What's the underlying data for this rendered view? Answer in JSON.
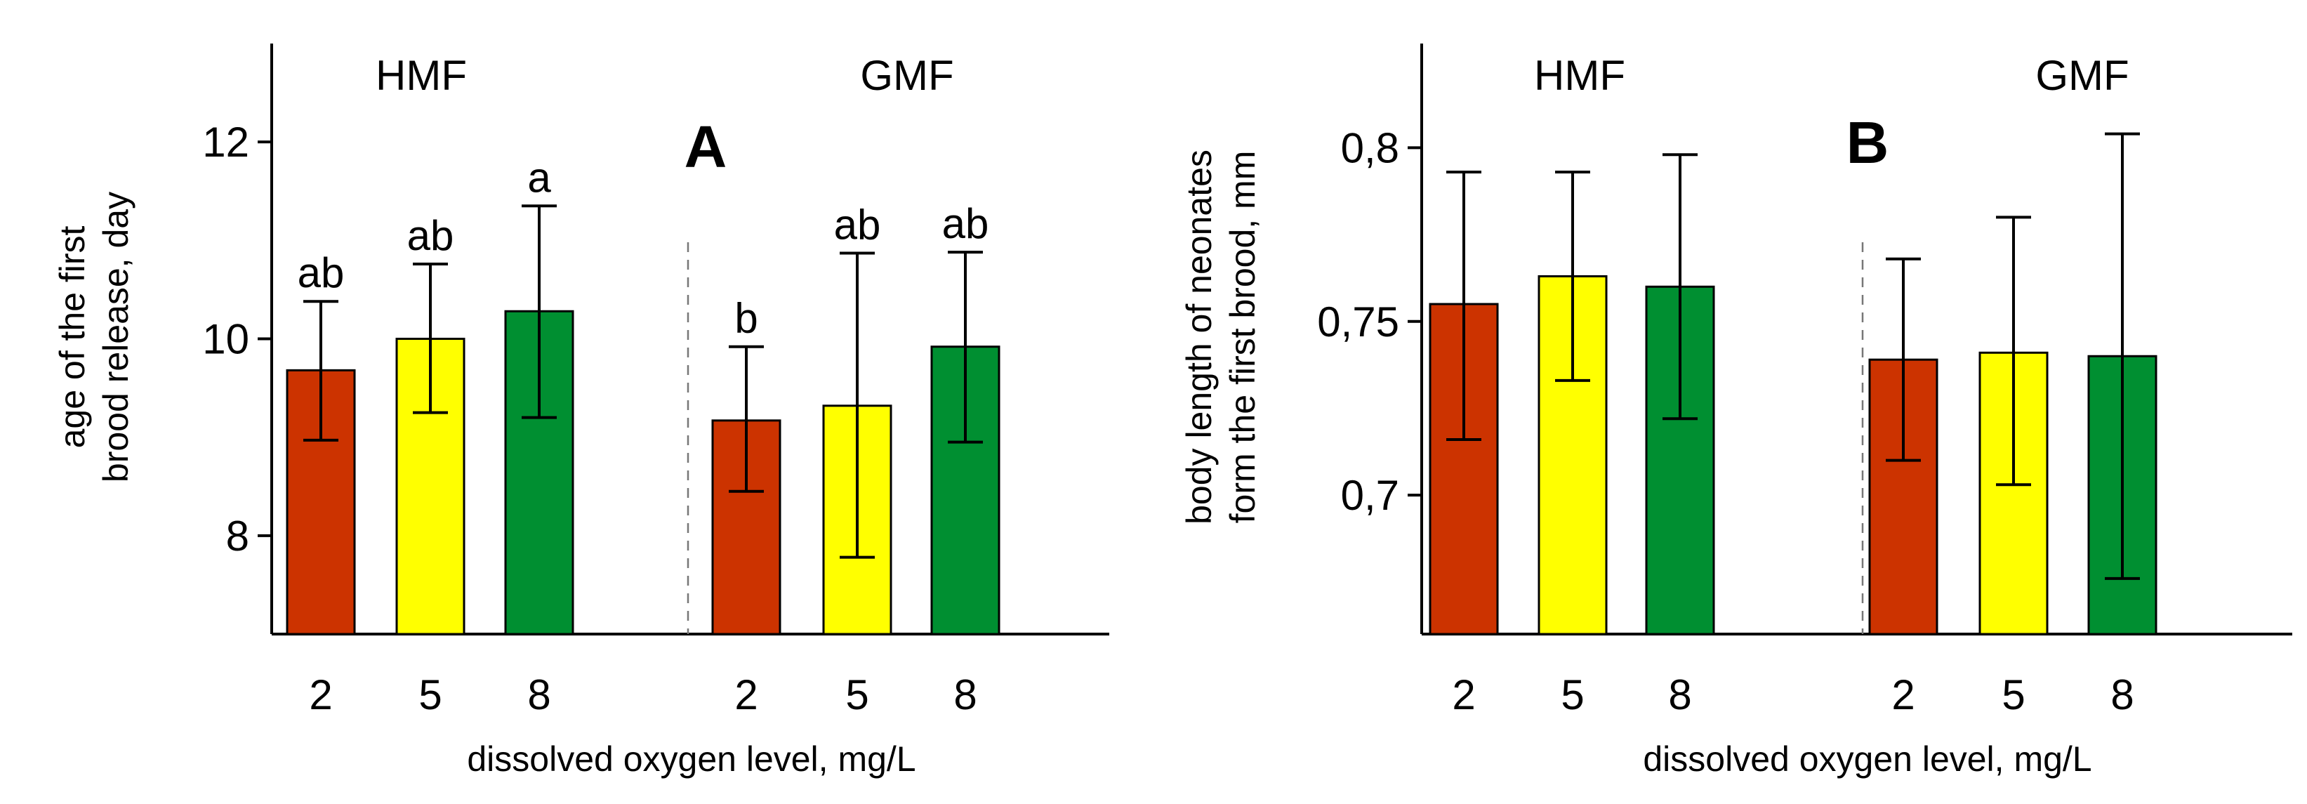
{
  "chart_data": [
    {
      "type": "bar",
      "panel": "A",
      "title": "A",
      "xlabel": "dissolved oxygen level, mg/L",
      "ylabel_lines": [
        "age of the first",
        "brood release, day"
      ],
      "ylim": [
        7,
        13
      ],
      "yticks": [
        8,
        10,
        12
      ],
      "ytick_labels": [
        "8",
        "10",
        "12"
      ],
      "groups": [
        {
          "name": "HMF",
          "bars": [
            {
              "x_label": "2",
              "value": 9.68,
              "err_low": 8.97,
              "err_high": 10.38,
              "sig": "ab",
              "color": "#cc3300"
            },
            {
              "x_label": "5",
              "value": 10.0,
              "err_low": 9.25,
              "err_high": 10.76,
              "sig": "ab",
              "color": "#ffff00"
            },
            {
              "x_label": "8",
              "value": 10.28,
              "err_low": 9.2,
              "err_high": 11.35,
              "sig": "a",
              "color": "#008f31"
            }
          ]
        },
        {
          "name": "GMF",
          "bars": [
            {
              "x_label": "2",
              "value": 9.17,
              "err_low": 8.45,
              "err_high": 9.92,
              "sig": "b",
              "color": "#cc3300"
            },
            {
              "x_label": "5",
              "value": 9.32,
              "err_low": 7.78,
              "err_high": 10.87,
              "sig": "ab",
              "color": "#ffff00"
            },
            {
              "x_label": "8",
              "value": 9.92,
              "err_low": 8.95,
              "err_high": 10.88,
              "sig": "ab",
              "color": "#008f31"
            }
          ]
        }
      ]
    },
    {
      "type": "bar",
      "panel": "B",
      "title": "B",
      "xlabel": "dissolved oxygen level, mg/L",
      "ylabel_lines": [
        "body length of neonates",
        "form the first brood, mm"
      ],
      "ylim": [
        0.66,
        0.83
      ],
      "yticks": [
        0.7,
        0.75,
        0.8
      ],
      "ytick_labels": [
        "0,7",
        "0,75",
        "0,8"
      ],
      "groups": [
        {
          "name": "HMF",
          "bars": [
            {
              "x_label": "2",
              "value": 0.755,
              "err_low": 0.716,
              "err_high": 0.793,
              "sig": "",
              "color": "#cc3300"
            },
            {
              "x_label": "5",
              "value": 0.763,
              "err_low": 0.733,
              "err_high": 0.793,
              "sig": "",
              "color": "#ffff00"
            },
            {
              "x_label": "8",
              "value": 0.76,
              "err_low": 0.722,
              "err_high": 0.798,
              "sig": "",
              "color": "#008f31"
            }
          ]
        },
        {
          "name": "GMF",
          "bars": [
            {
              "x_label": "2",
              "value": 0.739,
              "err_low": 0.71,
              "err_high": 0.768,
              "sig": "",
              "color": "#cc3300"
            },
            {
              "x_label": "5",
              "value": 0.741,
              "err_low": 0.703,
              "err_high": 0.78,
              "sig": "",
              "color": "#ffff00"
            },
            {
              "x_label": "8",
              "value": 0.74,
              "err_low": 0.676,
              "err_high": 0.804,
              "sig": "",
              "color": "#008f31"
            }
          ]
        }
      ]
    }
  ]
}
